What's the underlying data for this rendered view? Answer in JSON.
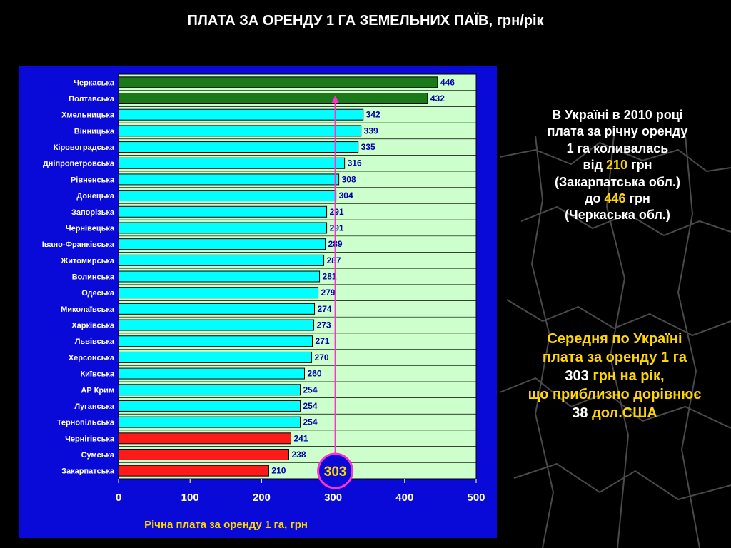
{
  "title": "ПЛАТА ЗА ОРЕНДУ 1 ГА ЗЕМЕЛЬНИХ ПАЇВ, грн/рік",
  "colors": {
    "top": "#1a7a1a",
    "middle": "#00ffff",
    "bottom": "#ff1a1a",
    "plot_bg": "#ccffcc",
    "panel_bg": "#0a0ad8",
    "average_marker": "#ff33cc"
  },
  "chart_data": {
    "type": "bar",
    "orientation": "horizontal",
    "title": "ПЛАТА ЗА ОРЕНДУ 1 ГА ЗЕМЕЛЬНИХ ПАЇВ, грн/рік",
    "xlabel": "Річна плата за оренду 1 га, грн",
    "xlim": [
      0,
      500
    ],
    "xticks": [
      0,
      100,
      200,
      300,
      400,
      500
    ],
    "grid": "horizontal",
    "categories": [
      "Черкаська",
      "Полтавська",
      "Хмельницька",
      "Вінницька",
      "Кіровоградська",
      "Дніпропетровська",
      "Рівненська",
      "Донецька",
      "Запорізька",
      "Чернівецька",
      "Івано-Франківська",
      "Житомирська",
      "Волинська",
      "Одеська",
      "Миколаївська",
      "Харківська",
      "Львівська",
      "Херсонська",
      "Київська",
      "АР Крим",
      "Луганська",
      "Тернопільська",
      "Чернігівська",
      "Сумська",
      "Закарпатська"
    ],
    "values": [
      446,
      432,
      342,
      339,
      335,
      316,
      308,
      304,
      291,
      291,
      289,
      287,
      281,
      279,
      274,
      273,
      271,
      270,
      260,
      254,
      254,
      254,
      241,
      238,
      210
    ],
    "bar_groups": [
      "top",
      "top",
      "middle",
      "middle",
      "middle",
      "middle",
      "middle",
      "middle",
      "middle",
      "middle",
      "middle",
      "middle",
      "middle",
      "middle",
      "middle",
      "middle",
      "middle",
      "middle",
      "middle",
      "middle",
      "middle",
      "middle",
      "bottom",
      "bottom",
      "bottom"
    ],
    "average": {
      "value": 303,
      "label": "303"
    }
  },
  "notes": {
    "note1": {
      "l1": "В Україні в 2010 році",
      "l2": "плата за річну оренду",
      "l3": "1 га коливалась",
      "l4a": "від ",
      "l4b": "210",
      "l4c": " грн",
      "l5": "(Закарпатська обл.)",
      "l6a": "до ",
      "l6b": "446",
      "l6c": " грн",
      "l7": "(Черкаська обл.)"
    },
    "note2": {
      "l1": "Середня по Україні",
      "l2": "плата за оренду 1 га",
      "l3a": "303",
      "l3b": " грн на рік,",
      "l4": "що приблизно дорівнює",
      "l5a": "38",
      "l5b": " дол.США"
    }
  }
}
